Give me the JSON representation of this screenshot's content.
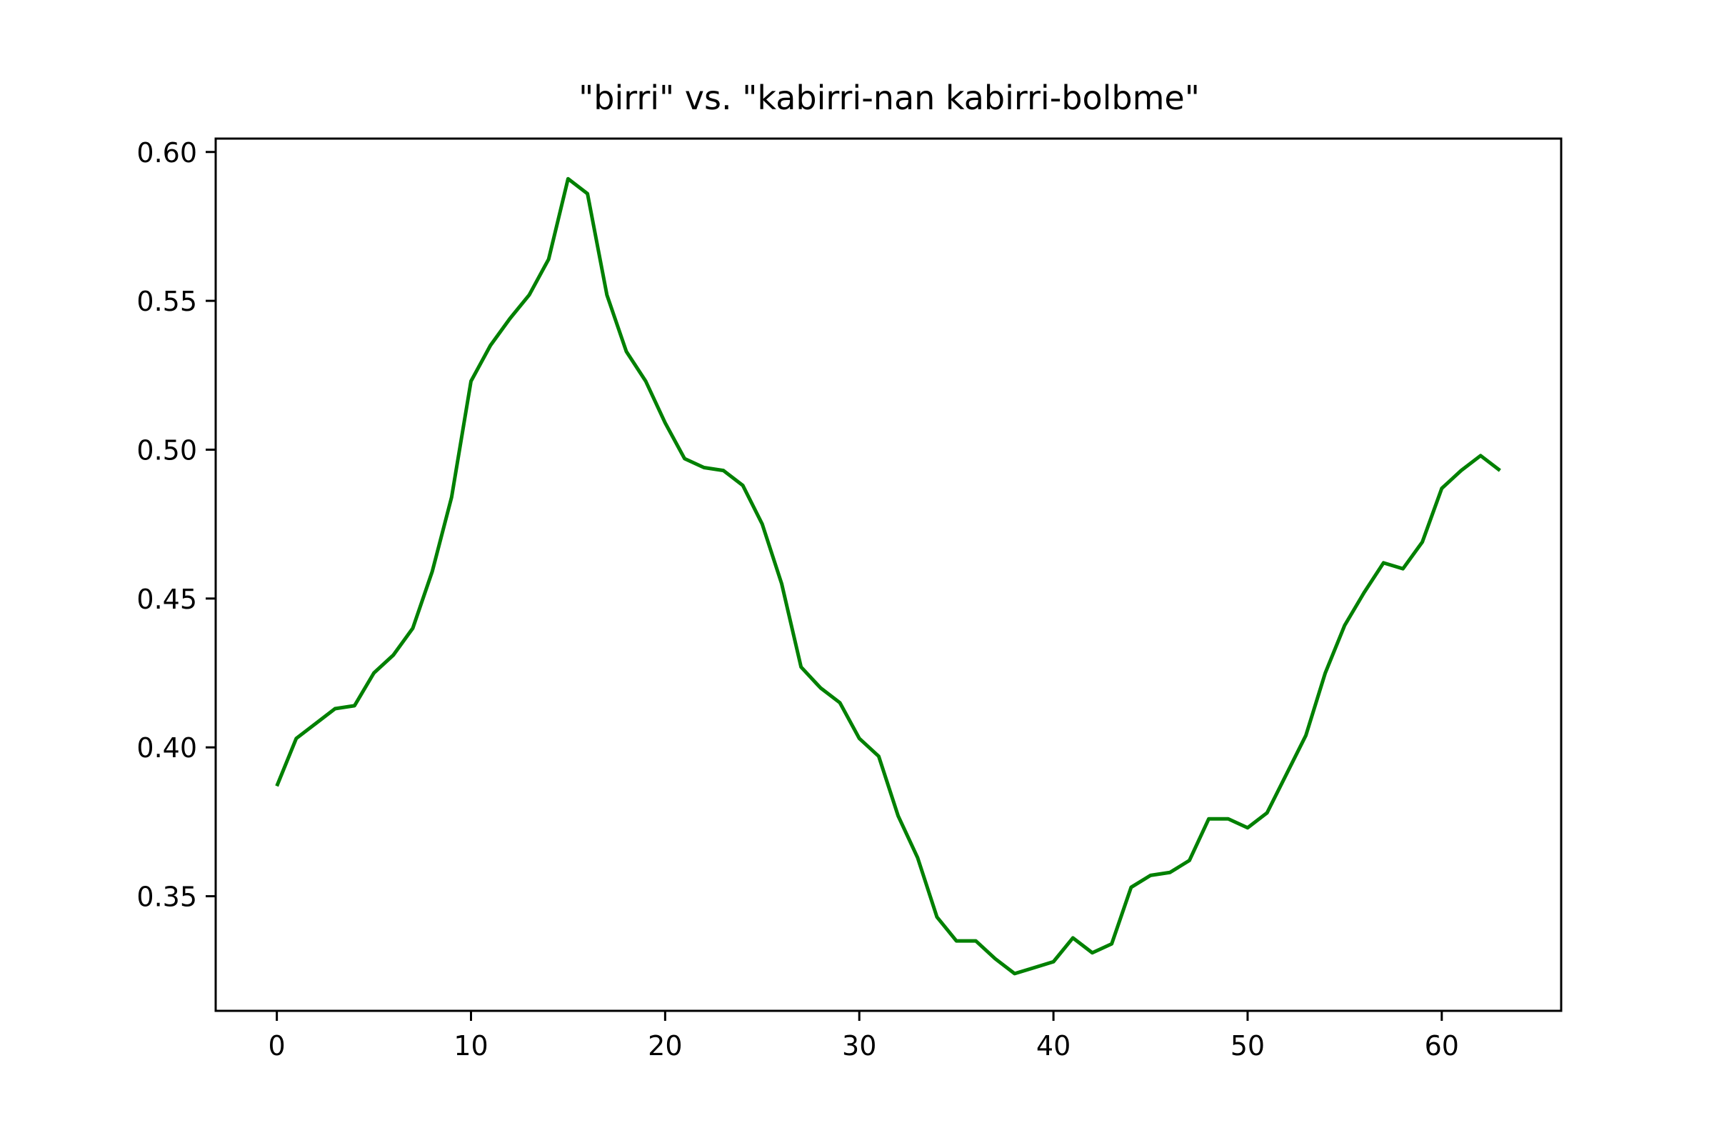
{
  "chart_data": {
    "type": "line",
    "title": "\"birri\" vs. \"kabirri-nan kabirri-bolbme\"",
    "xlabel": "",
    "ylabel": "",
    "xlim": [
      -3.15,
      66.15
    ],
    "ylim": [
      0.3115,
      0.6045
    ],
    "x_ticks": [
      0,
      10,
      20,
      30,
      40,
      50,
      60
    ],
    "x_tick_labels": [
      "0",
      "10",
      "20",
      "30",
      "40",
      "50",
      "60"
    ],
    "y_ticks": [
      0.35,
      0.4,
      0.45,
      0.5,
      0.55,
      0.6
    ],
    "y_tick_labels": [
      "0.35",
      "0.40",
      "0.45",
      "0.50",
      "0.55",
      "0.60"
    ],
    "grid": false,
    "legend": "none",
    "series": [
      {
        "color": "#008000",
        "x": [
          0,
          1,
          2,
          3,
          4,
          5,
          6,
          7,
          8,
          9,
          10,
          11,
          12,
          13,
          14,
          15,
          16,
          17,
          18,
          19,
          20,
          21,
          22,
          23,
          24,
          25,
          26,
          27,
          28,
          29,
          30,
          31,
          32,
          33,
          34,
          35,
          36,
          37,
          38,
          39,
          40,
          41,
          42,
          43,
          44,
          45,
          46,
          47,
          48,
          49,
          50,
          51,
          52,
          53,
          54,
          55,
          56,
          57,
          58,
          59,
          60,
          61,
          62,
          63
        ],
        "values": [
          0.387,
          0.403,
          0.408,
          0.413,
          0.414,
          0.425,
          0.431,
          0.44,
          0.459,
          0.484,
          0.523,
          0.535,
          0.544,
          0.552,
          0.564,
          0.591,
          0.586,
          0.552,
          0.533,
          0.523,
          0.509,
          0.497,
          0.494,
          0.493,
          0.488,
          0.475,
          0.455,
          0.427,
          0.42,
          0.415,
          0.403,
          0.397,
          0.377,
          0.363,
          0.343,
          0.335,
          0.335,
          0.329,
          0.324,
          0.326,
          0.328,
          0.336,
          0.331,
          0.334,
          0.353,
          0.357,
          0.358,
          0.362,
          0.376,
          0.376,
          0.373,
          0.378,
          0.391,
          0.404,
          0.425,
          0.441,
          0.452,
          0.462,
          0.46,
          0.469,
          0.487,
          0.493,
          0.498,
          0.493
        ]
      }
    ]
  }
}
